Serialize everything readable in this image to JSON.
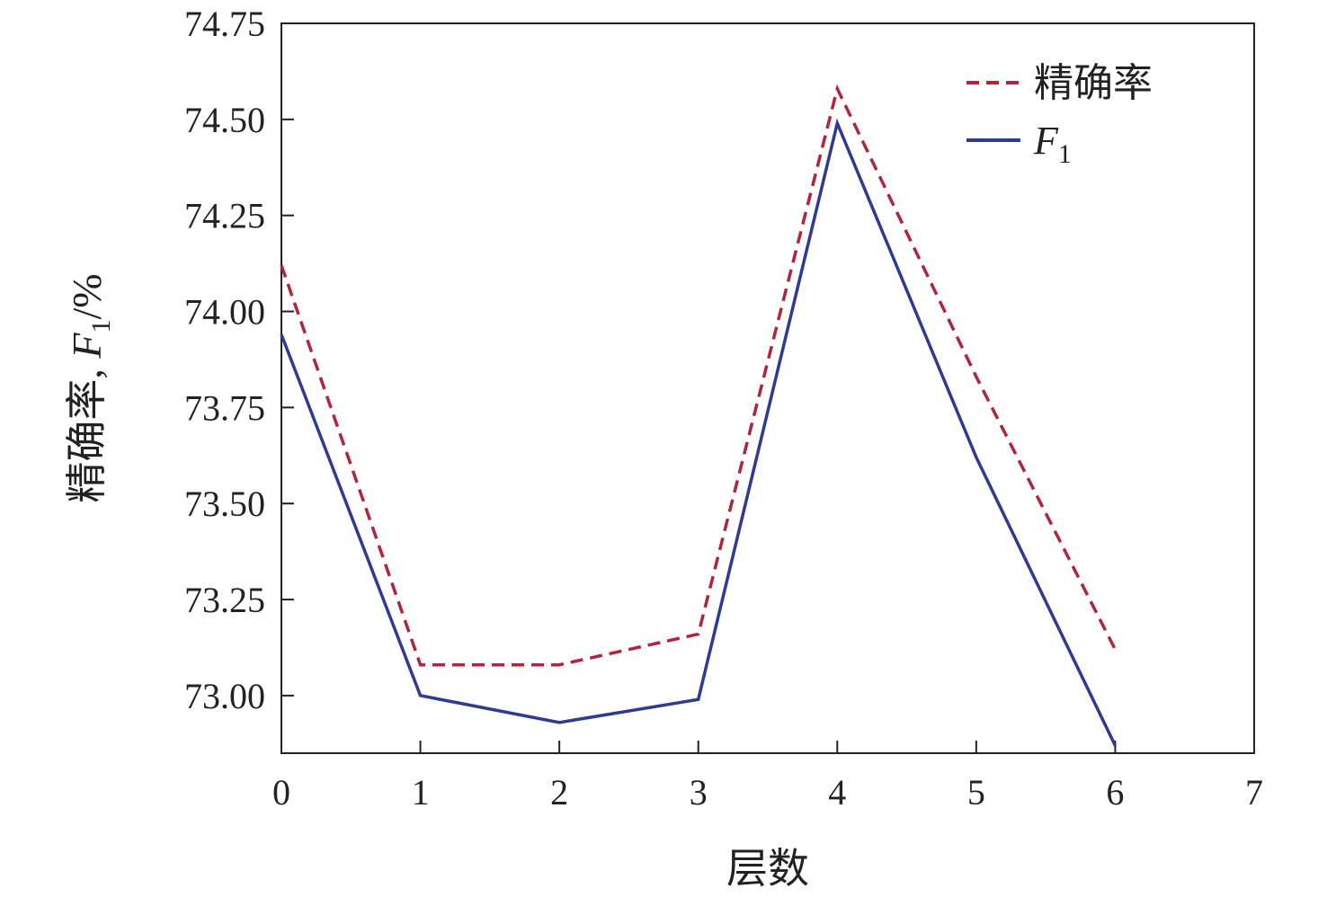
{
  "chart_data": {
    "type": "line",
    "title": "",
    "xlabel": "层数",
    "ylabel": {
      "prefix": "精确率, ",
      "var": "F",
      "sub": "1",
      "suffix": "/%"
    },
    "xlim": [
      0,
      7
    ],
    "ylim": [
      72.85,
      74.75
    ],
    "xticks": [
      0,
      1,
      2,
      3,
      4,
      5,
      6,
      7
    ],
    "xtick_labels": [
      "0",
      "1",
      "2",
      "3",
      "4",
      "5",
      "6",
      "7"
    ],
    "yticks": [
      73.0,
      73.25,
      73.5,
      73.75,
      74.0,
      74.25,
      74.5,
      74.75
    ],
    "ytick_labels": [
      "73.00",
      "73.25",
      "73.50",
      "73.75",
      "74.00",
      "74.25",
      "74.50",
      "74.75"
    ],
    "grid": false,
    "legend_position": "top-right",
    "series": [
      {
        "name": "精确率",
        "name_var": "",
        "name_sub": "",
        "style": "dashed",
        "color": "#b2243c",
        "x": [
          0,
          1,
          2,
          3,
          4,
          5,
          6
        ],
        "y": [
          74.12,
          73.08,
          73.08,
          73.16,
          74.58,
          73.83,
          73.12
        ]
      },
      {
        "name": "",
        "name_var": "F",
        "name_sub": "1",
        "style": "solid",
        "color": "#2f3a93",
        "x": [
          0,
          1,
          2,
          3,
          4,
          5,
          6
        ],
        "y": [
          73.94,
          73.0,
          72.93,
          72.99,
          74.49,
          73.62,
          72.87
        ]
      }
    ]
  }
}
